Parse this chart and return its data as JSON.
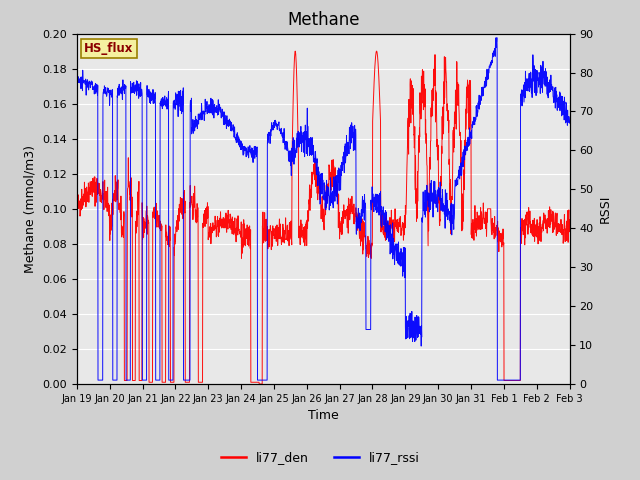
{
  "title": "Methane",
  "ylabel_left": "Methane (mmol/m3)",
  "ylabel_right": "RSSI",
  "xlabel": "Time",
  "ylim_left": [
    0,
    0.2
  ],
  "ylim_right": [
    0,
    90
  ],
  "yticks_left": [
    0.0,
    0.02,
    0.04,
    0.06,
    0.08,
    0.1,
    0.12,
    0.14,
    0.16,
    0.18,
    0.2
  ],
  "yticks_right": [
    0,
    10,
    20,
    30,
    40,
    50,
    60,
    70,
    80,
    90
  ],
  "xtick_labels": [
    "Jan 19",
    "Jan 20",
    "Jan 21",
    "Jan 22",
    "Jan 23",
    "Jan 24",
    "Jan 25",
    "Jan 26",
    "Jan 27",
    "Jan 28",
    "Jan 29",
    "Jan 30",
    "Jan 31",
    "Feb 1",
    "Feb 2",
    "Feb 3"
  ],
  "legend_labels": [
    "li77_den",
    "li77_rssi"
  ],
  "legend_colors": [
    "red",
    "blue"
  ],
  "hs_flux_label": "HS_flux",
  "background_color": "#d0d0d0",
  "plot_bg_color": "#e8e8e8",
  "title_fontsize": 12,
  "axis_fontsize": 9,
  "tick_fontsize": 8,
  "legend_fontsize": 9
}
